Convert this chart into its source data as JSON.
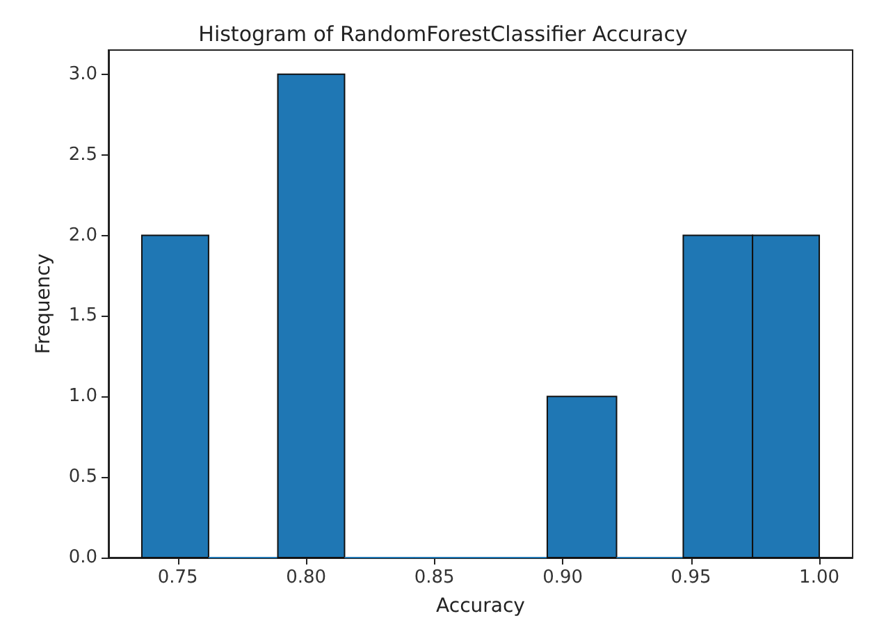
{
  "chart_data": {
    "type": "histogram",
    "title": "Histogram of RandomForestClassifier Accuracy",
    "xlabel": "Accuracy",
    "ylabel": "Frequency",
    "bins": [
      0.736,
      0.762,
      0.789,
      0.815,
      0.842,
      0.868,
      0.894,
      0.921,
      0.947,
      0.974,
      1.0
    ],
    "values": [
      2,
      0,
      3,
      0,
      0,
      0,
      1,
      0,
      2,
      2
    ],
    "color": "#1f77b4",
    "xlim": [
      0.723,
      1.013
    ],
    "xticks": [
      {
        "value": 0.75,
        "label": "0.75"
      },
      {
        "value": 0.8,
        "label": "0.80"
      },
      {
        "value": 0.85,
        "label": "0.85"
      },
      {
        "value": 0.9,
        "label": "0.90"
      },
      {
        "value": 0.95,
        "label": "0.95"
      },
      {
        "value": 1.0,
        "label": "1.00"
      }
    ],
    "ylim": [
      0,
      3.15
    ],
    "yticks": [
      {
        "value": 0,
        "label": "0.0"
      },
      {
        "value": 0.5,
        "label": "0.5"
      },
      {
        "value": 1,
        "label": "1.0"
      },
      {
        "value": 1.5,
        "label": "1.5"
      },
      {
        "value": 2,
        "label": "2.0"
      },
      {
        "value": 2.5,
        "label": "2.5"
      },
      {
        "value": 3,
        "label": "3.0"
      }
    ],
    "grid": false
  }
}
